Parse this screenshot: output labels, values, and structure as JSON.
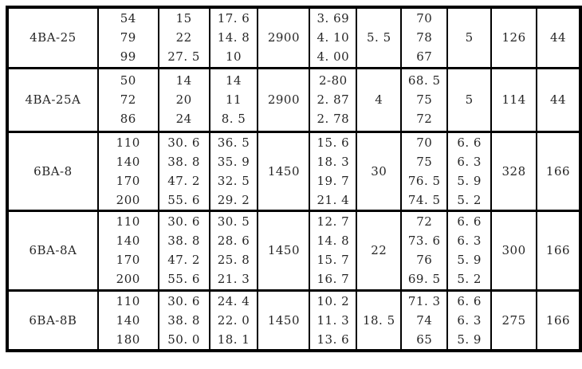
{
  "colors": {
    "background": "#ffffff",
    "border": "#000000",
    "text": "#262626"
  },
  "table": {
    "description_visible_header": "",
    "rows": [
      {
        "cells": [
          [
            "4BA-25"
          ],
          [
            "54",
            "79",
            "99"
          ],
          [
            "15",
            "22",
            "27. 5"
          ],
          [
            "17. 6",
            "14. 8",
            "10"
          ],
          [
            "2900"
          ],
          [
            "3. 69",
            "4. 10",
            "4. 00"
          ],
          [
            "5. 5"
          ],
          [
            "70",
            "78",
            "67"
          ],
          [
            "5"
          ],
          [
            "126"
          ],
          [
            "44"
          ]
        ]
      },
      {
        "cells": [
          [
            "4BA-25A"
          ],
          [
            "50",
            "72",
            "86"
          ],
          [
            "14",
            "20",
            "24"
          ],
          [
            "14",
            "11",
            "8. 5"
          ],
          [
            "2900"
          ],
          [
            "2-80",
            "2. 87",
            "2. 78"
          ],
          [
            "4"
          ],
          [
            "68. 5",
            "75",
            "72"
          ],
          [
            "5"
          ],
          [
            "114"
          ],
          [
            "44"
          ]
        ]
      },
      {
        "cells": [
          [
            "6BA-8"
          ],
          [
            "110",
            "140",
            "170",
            "200"
          ],
          [
            "30. 6",
            "38. 8",
            "47. 2",
            "55. 6"
          ],
          [
            "36. 5",
            "35. 9",
            "32. 5",
            "29. 2"
          ],
          [
            "1450"
          ],
          [
            "15. 6",
            "18. 3",
            "19. 7",
            "21. 4"
          ],
          [
            "30"
          ],
          [
            "70",
            "75",
            "76. 5",
            "74. 5"
          ],
          [
            "6. 6",
            "6. 3",
            "5. 9",
            "5. 2"
          ],
          [
            "328"
          ],
          [
            "166"
          ]
        ]
      },
      {
        "cells": [
          [
            "6BA-8A"
          ],
          [
            "110",
            "140",
            "170",
            "200"
          ],
          [
            "30. 6",
            "38. 8",
            "47. 2",
            "55. 6"
          ],
          [
            "30. 5",
            "28. 6",
            "25. 8",
            "21. 3"
          ],
          [
            "1450"
          ],
          [
            "12. 7",
            "14. 8",
            "15. 7",
            "16. 7"
          ],
          [
            "22"
          ],
          [
            "72",
            "73. 6",
            "76",
            "69. 5"
          ],
          [
            "6. 6",
            "6. 3",
            "5. 9",
            "5. 2"
          ],
          [
            "300"
          ],
          [
            "166"
          ]
        ]
      },
      {
        "cells": [
          [
            "6BA-8B"
          ],
          [
            "110",
            "140",
            "180"
          ],
          [
            "30. 6",
            "38. 8",
            "50. 0"
          ],
          [
            "24. 4",
            "22. 0",
            "18. 1"
          ],
          [
            "1450"
          ],
          [
            "10. 2",
            "11. 3",
            "13. 6"
          ],
          [
            "18. 5"
          ],
          [
            "71. 3",
            "74",
            "65"
          ],
          [
            "6. 6",
            "6. 3",
            "5. 9"
          ],
          [
            "275"
          ],
          [
            "166"
          ]
        ]
      }
    ]
  }
}
